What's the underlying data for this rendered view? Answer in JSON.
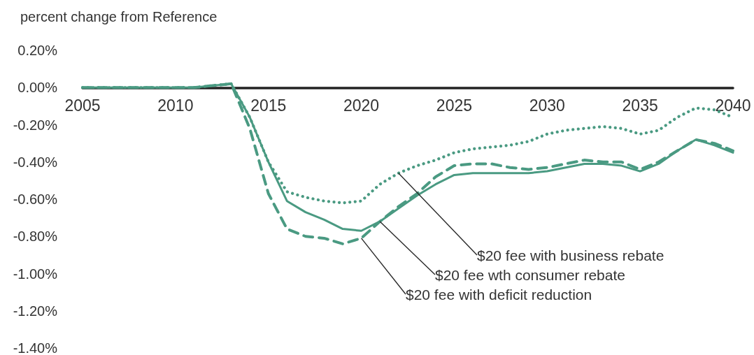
{
  "chart_data": {
    "type": "line",
    "ylabel": "percent change from Reference",
    "x": [
      2005,
      2006,
      2007,
      2008,
      2009,
      2010,
      2011,
      2012,
      2013,
      2014,
      2015,
      2016,
      2017,
      2018,
      2019,
      2020,
      2021,
      2022,
      2023,
      2024,
      2025,
      2026,
      2027,
      2028,
      2029,
      2030,
      2031,
      2032,
      2033,
      2034,
      2035,
      2036,
      2037,
      2038,
      2039,
      2040
    ],
    "series": [
      {
        "name": "$20 fee with business rebate",
        "color": "#4a9a82",
        "line_style": "dotted",
        "values": [
          0,
          0,
          0,
          0,
          0,
          0,
          0,
          0.01,
          0.02,
          -0.16,
          -0.4,
          -0.56,
          -0.59,
          -0.61,
          -0.62,
          -0.61,
          -0.52,
          -0.46,
          -0.42,
          -0.39,
          -0.35,
          -0.33,
          -0.32,
          -0.31,
          -0.29,
          -0.25,
          -0.23,
          -0.22,
          -0.21,
          -0.22,
          -0.25,
          -0.23,
          -0.16,
          -0.11,
          -0.12,
          -0.16
        ]
      },
      {
        "name": "$20 fee wth consumer rebate",
        "color": "#4a9a82",
        "line_style": "solid",
        "values": [
          0,
          0,
          0,
          0,
          0,
          0,
          0,
          0.01,
          0.02,
          -0.16,
          -0.4,
          -0.61,
          -0.67,
          -0.71,
          -0.76,
          -0.77,
          -0.72,
          -0.65,
          -0.58,
          -0.52,
          -0.47,
          -0.46,
          -0.46,
          -0.46,
          -0.46,
          -0.45,
          -0.43,
          -0.41,
          -0.41,
          -0.42,
          -0.45,
          -0.41,
          -0.34,
          -0.28,
          -0.31,
          -0.35
        ]
      },
      {
        "name": "$20 fee with deficit reduction",
        "color": "#4a9a82",
        "line_style": "dashed",
        "values": [
          0,
          0,
          0,
          0,
          0,
          0,
          0,
          0.01,
          0.02,
          -0.22,
          -0.57,
          -0.76,
          -0.8,
          -0.81,
          -0.84,
          -0.81,
          -0.72,
          -0.64,
          -0.57,
          -0.48,
          -0.42,
          -0.41,
          -0.41,
          -0.43,
          -0.44,
          -0.43,
          -0.41,
          -0.39,
          -0.4,
          -0.4,
          -0.44,
          -0.4,
          -0.34,
          -0.28,
          -0.3,
          -0.34
        ]
      }
    ],
    "xlim": [
      2005,
      2040
    ],
    "xticks": [
      2005,
      2010,
      2015,
      2020,
      2025,
      2030,
      2035,
      2040
    ],
    "ylim": [
      -1.4,
      0.2
    ],
    "yticks": [
      {
        "value": -1.4,
        "label": "-1.40%"
      },
      {
        "value": -1.2,
        "label": "-1.20%"
      },
      {
        "value": -1.0,
        "label": "-1.00%"
      },
      {
        "value": -0.8,
        "label": "-0.80%"
      },
      {
        "value": -0.6,
        "label": "-0.60%"
      },
      {
        "value": -0.4,
        "label": "-0.40%"
      },
      {
        "value": -0.2,
        "label": "-0.20%"
      },
      {
        "value": 0,
        "label": "0.00%"
      },
      {
        "value": 0.2,
        "label": "0.20%"
      }
    ]
  }
}
